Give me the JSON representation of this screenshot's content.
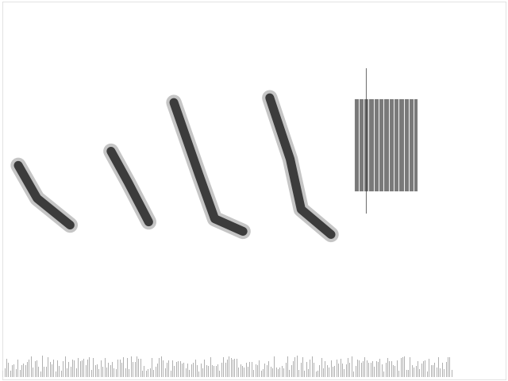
{
  "chart_data": {
    "type": "spectrogram",
    "xlim": [
      0,
      3.2
    ],
    "ylim": [
      0,
      12
    ],
    "xticks": [],
    "yticks": [],
    "tick_labels": false,
    "grid": false,
    "color": "#1a1a1a",
    "notes": [
      {
        "time": [
          0.1,
          0.22,
          0.43
        ],
        "frequency": [
          6.8,
          5.75,
          4.9
        ]
      },
      {
        "time": [
          0.69,
          0.8,
          0.93
        ],
        "frequency": [
          7.25,
          6.25,
          5.0
        ]
      },
      {
        "time": [
          1.09,
          1.25,
          1.35,
          1.53
        ],
        "frequency": [
          8.8,
          6.5,
          5.1,
          4.7
        ]
      },
      {
        "time": [
          1.7,
          1.83,
          1.9,
          2.09
        ],
        "frequency": [
          8.95,
          7.0,
          5.4,
          4.6
        ]
      }
    ],
    "buzz": {
      "time": [
        2.24,
        2.64
      ],
      "frequency": [
        6.0,
        8.9
      ],
      "spike_frequency": [
        5.3,
        9.9
      ],
      "spike_time": 2.31
    },
    "noise_band": {
      "time": [
        0.0,
        2.86
      ],
      "frequency": [
        0.1,
        0.75
      ]
    }
  }
}
